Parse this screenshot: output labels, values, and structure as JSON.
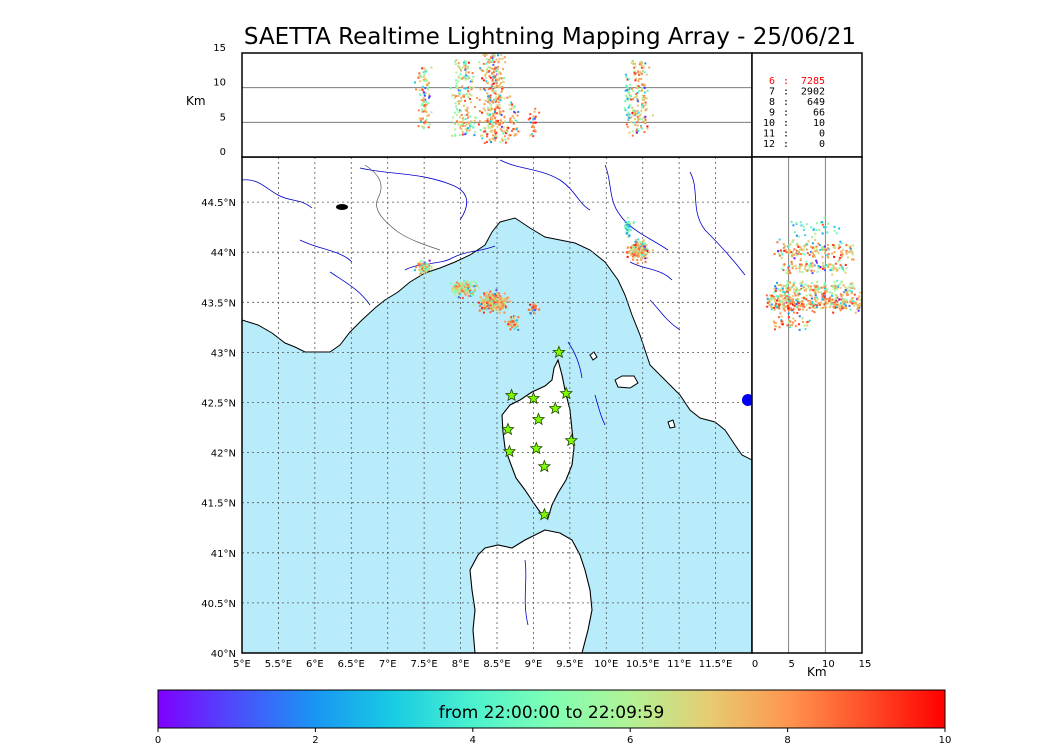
{
  "title": "SAETTA Realtime Lightning Mapping Array - 25/06/21",
  "colors": {
    "sea": "#b8ecfa",
    "land": "#ffffff",
    "coast": "#000000",
    "rivers": "#0000cc",
    "borders": "#555555",
    "station_fill": "#7cfc00",
    "station_edge": "#224400",
    "highlight_count": "#ff0000"
  },
  "map": {
    "lon_ticks": [
      "5°E",
      "5.5°E",
      "6°E",
      "6.5°E",
      "7°E",
      "7.5°E",
      "8°E",
      "8.5°E",
      "9°E",
      "9.5°E",
      "10°E",
      "10.5°E",
      "11°E",
      "11.5°E"
    ],
    "lat_ticks": [
      "40°N",
      "40.5°N",
      "41°N",
      "41.5°N",
      "42°N",
      "42.5°N",
      "43°N",
      "43.5°N",
      "44°N",
      "44.5°N"
    ],
    "lon_range": [
      5,
      12
    ],
    "lat_range": [
      40,
      44.95
    ],
    "grid": "dashed",
    "stations": [
      {
        "lon": 9.35,
        "lat": 43.0
      },
      {
        "lon": 8.7,
        "lat": 42.57
      },
      {
        "lon": 9.0,
        "lat": 42.54
      },
      {
        "lon": 9.45,
        "lat": 42.59
      },
      {
        "lon": 9.3,
        "lat": 42.44
      },
      {
        "lon": 9.07,
        "lat": 42.33
      },
      {
        "lon": 8.65,
        "lat": 42.23
      },
      {
        "lon": 9.52,
        "lat": 42.12
      },
      {
        "lon": 8.67,
        "lat": 42.01
      },
      {
        "lon": 9.04,
        "lat": 42.04
      },
      {
        "lon": 9.15,
        "lat": 41.86
      },
      {
        "lon": 9.15,
        "lat": 41.38
      }
    ]
  },
  "top_panel": {
    "ylabel": "Km",
    "y_ticks": [
      "15",
      "10",
      "5",
      "0"
    ],
    "y_range": [
      0,
      15
    ]
  },
  "right_panel": {
    "xlabel": "Km",
    "x_ticks": [
      "0",
      "5",
      "10",
      "15"
    ],
    "x_range": [
      0,
      15
    ]
  },
  "counts": [
    {
      "k": "6",
      "v": "7285",
      "highlight": true
    },
    {
      "k": "7",
      "v": "2902",
      "highlight": false
    },
    {
      "k": "8",
      "v": "649",
      "highlight": false
    },
    {
      "k": "9",
      "v": "66",
      "highlight": false
    },
    {
      "k": "10",
      "v": "10",
      "highlight": false
    },
    {
      "k": "11",
      "v": "0",
      "highlight": false
    },
    {
      "k": "12",
      "v": "0",
      "highlight": false
    }
  ],
  "colorbar": {
    "label": "from 22:00:00 to 22:09:59",
    "ticks": [
      "0",
      "2",
      "4",
      "6",
      "8",
      "10"
    ],
    "range": [
      0,
      10
    ]
  },
  "lightning": {
    "clusters": [
      {
        "lon": 7.5,
        "lat": 43.85,
        "slon": 0.07,
        "slat": 0.04,
        "n": 90,
        "t": 7.0,
        "top": [
          4,
          13
        ]
      },
      {
        "lon": 8.05,
        "lat": 43.63,
        "slon": 0.12,
        "slat": 0.05,
        "n": 170,
        "t": 6.5,
        "top": [
          3,
          14
        ]
      },
      {
        "lon": 8.45,
        "lat": 43.5,
        "slon": 0.12,
        "slat": 0.06,
        "n": 320,
        "t": 7.8,
        "top": [
          2,
          15
        ]
      },
      {
        "lon": 8.72,
        "lat": 43.3,
        "slon": 0.05,
        "slat": 0.05,
        "n": 40,
        "t": 8.0,
        "top": [
          3,
          8
        ]
      },
      {
        "lon": 9.0,
        "lat": 43.45,
        "slon": 0.04,
        "slat": 0.05,
        "n": 25,
        "t": 8.5,
        "top": [
          3,
          7
        ]
      },
      {
        "lon": 10.45,
        "lat": 44.02,
        "slon": 0.1,
        "slat": 0.07,
        "n": 160,
        "t": 7.5,
        "top": [
          3,
          14
        ]
      },
      {
        "lon": 10.3,
        "lat": 44.25,
        "slon": 0.05,
        "slat": 0.06,
        "n": 35,
        "t": 4.5,
        "top": [
          5,
          12
        ]
      }
    ]
  }
}
